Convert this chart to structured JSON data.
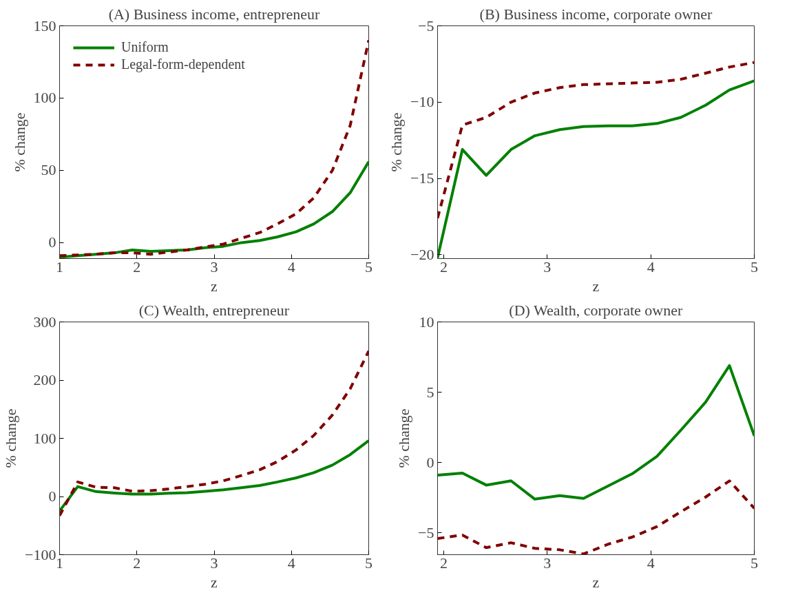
{
  "chart_data": [
    {
      "type": "line",
      "title": "(A) Business income, entrepreneur",
      "xlabel": "z",
      "ylabel": "% change",
      "x": [
        1,
        1.235,
        1.47,
        1.71,
        1.94,
        2.18,
        2.41,
        2.65,
        2.88,
        3.12,
        3.35,
        3.59,
        3.82,
        4.06,
        4.29,
        4.53,
        4.76,
        5
      ],
      "xlim": [
        1,
        5
      ],
      "xticks": [
        1,
        2,
        3,
        4,
        5
      ],
      "ylim": [
        -11,
        150
      ],
      "yticks": [
        0,
        50,
        100,
        150
      ],
      "legend": "top left",
      "grid": false,
      "series": [
        {
          "name": "Uniform",
          "color": "#008000",
          "line_style": "solid",
          "values": [
            -10,
            -9,
            -8,
            -7,
            -5,
            -6,
            -5.5,
            -5,
            -3.5,
            -2.5,
            0,
            1.5,
            4,
            7.5,
            13,
            21.5,
            34.5,
            56
          ]
        },
        {
          "name": "Legal-form-dependent",
          "color": "#800000",
          "line_style": "dashed",
          "values": [
            -9,
            -8.5,
            -8,
            -7,
            -7,
            -8,
            -6.5,
            -5,
            -3,
            -1,
            3,
            7,
            13,
            20,
            31,
            50,
            81,
            140
          ]
        }
      ]
    },
    {
      "type": "line",
      "title": "(B) Business income, corporate owner",
      "xlabel": "z",
      "ylabel": "% change",
      "x": [
        1.94,
        2.18,
        2.41,
        2.65,
        2.88,
        3.12,
        3.35,
        3.59,
        3.82,
        4.06,
        4.29,
        4.53,
        4.76,
        5
      ],
      "xlim": [
        1.94,
        5
      ],
      "xticks": [
        2,
        3,
        4,
        5
      ],
      "ylim": [
        -20.25,
        -5
      ],
      "yticks": [
        -20,
        -15,
        -10,
        -5
      ],
      "grid": false,
      "series": [
        {
          "color": "#008000",
          "line_style": "solid",
          "values": [
            -20.2,
            -13.1,
            -14.8,
            -13.1,
            -12.2,
            -11.8,
            -11.6,
            -11.55,
            -11.55,
            -11.4,
            -11,
            -10.2,
            -9.2,
            -8.6
          ]
        },
        {
          "color": "#800000",
          "line_style": "dashed",
          "values": [
            -17.6,
            -11.5,
            -11,
            -10,
            -9.4,
            -9.05,
            -8.85,
            -8.8,
            -8.75,
            -8.7,
            -8.5,
            -8.1,
            -7.7,
            -7.4
          ]
        }
      ]
    },
    {
      "type": "line",
      "title": "(C) Wealth, entrepreneur",
      "xlabel": "z",
      "ylabel": "% change",
      "x": [
        1,
        1.235,
        1.47,
        1.71,
        1.94,
        2.18,
        2.41,
        2.65,
        2.88,
        3.12,
        3.35,
        3.59,
        3.82,
        4.06,
        4.29,
        4.53,
        4.76,
        5
      ],
      "xlim": [
        1,
        5
      ],
      "xticks": [
        1,
        2,
        3,
        4,
        5
      ],
      "ylim": [
        -100,
        300
      ],
      "yticks": [
        -100,
        0,
        100,
        200,
        300
      ],
      "grid": false,
      "series": [
        {
          "color": "#008000",
          "line_style": "solid",
          "values": [
            -25,
            17,
            8.5,
            6,
            4,
            4,
            5.5,
            6.5,
            9,
            11.5,
            15,
            19,
            25,
            32,
            41,
            54,
            72,
            96
          ]
        },
        {
          "color": "#800000",
          "line_style": "dashed",
          "values": [
            -33,
            25,
            16,
            15,
            9,
            10,
            13,
            17,
            21,
            27,
            36,
            46,
            60,
            80,
            105,
            140,
            185,
            250
          ]
        }
      ]
    },
    {
      "type": "line",
      "title": "(D) Wealth, corporate owner",
      "xlabel": "z",
      "ylabel": "% change",
      "x": [
        1.94,
        2.18,
        2.41,
        2.65,
        2.88,
        3.12,
        3.35,
        3.59,
        3.82,
        4.06,
        4.29,
        4.53,
        4.76,
        5
      ],
      "xlim": [
        1.94,
        5
      ],
      "xticks": [
        2,
        3,
        4,
        5
      ],
      "ylim": [
        -6.55,
        10
      ],
      "yticks": [
        -5,
        0,
        5,
        10
      ],
      "grid": false,
      "series": [
        {
          "color": "#008000",
          "line_style": "solid",
          "values": [
            -0.9,
            -0.75,
            -1.6,
            -1.3,
            -2.6,
            -2.35,
            -2.55,
            -1.65,
            -0.8,
            0.45,
            2.3,
            4.3,
            6.9,
            1.9
          ]
        },
        {
          "color": "#800000",
          "line_style": "dashed",
          "values": [
            -5.4,
            -5.15,
            -6.05,
            -5.7,
            -6.1,
            -6.2,
            -6.5,
            -5.8,
            -5.3,
            -4.55,
            -3.5,
            -2.45,
            -1.3,
            -3.25
          ]
        }
      ]
    }
  ]
}
